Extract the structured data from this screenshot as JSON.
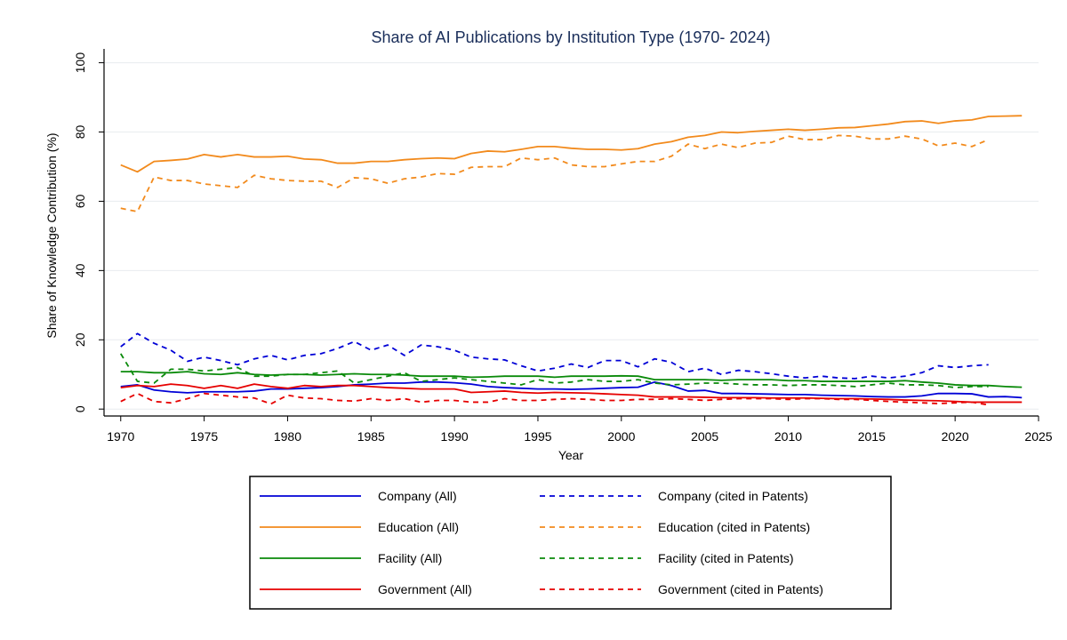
{
  "chart_data": {
    "type": "line",
    "title": "Share of AI Publications by Institution Type (1970- 2024)",
    "xlabel": "Year",
    "ylabel": "Share of Knowledge Contribution (%)",
    "xlim": [
      1969,
      2025
    ],
    "ylim": [
      -2,
      104
    ],
    "xticks": [
      1970,
      1975,
      1980,
      1985,
      1990,
      1995,
      2000,
      2005,
      2010,
      2015,
      2020,
      2025
    ],
    "yticks": [
      0,
      20,
      40,
      60,
      80,
      100
    ],
    "grid": "horizontal",
    "legend_position": "bottom",
    "series": [
      {
        "name": "Company (All)",
        "color": "#0000d6",
        "dash": "solid",
        "x": [
          1970,
          1971,
          1972,
          1973,
          1974,
          1975,
          1976,
          1977,
          1978,
          1979,
          1980,
          1981,
          1982,
          1983,
          1984,
          1985,
          1986,
          1987,
          1988,
          1989,
          1990,
          1991,
          1992,
          1993,
          1994,
          1995,
          1996,
          1997,
          1998,
          1999,
          2000,
          2001,
          2002,
          2003,
          2004,
          2005,
          2006,
          2007,
          2008,
          2009,
          2010,
          2011,
          2012,
          2013,
          2014,
          2015,
          2016,
          2017,
          2018,
          2019,
          2020,
          2021,
          2022,
          2023,
          2024
        ],
        "values": [
          6.5,
          7.0,
          5.5,
          5.0,
          4.7,
          5.0,
          5.0,
          5.0,
          5.2,
          5.8,
          5.8,
          6.0,
          6.2,
          6.5,
          7.0,
          7.2,
          7.5,
          7.5,
          7.8,
          7.8,
          7.6,
          7.2,
          6.5,
          6.2,
          6.0,
          5.8,
          5.8,
          5.7,
          5.8,
          6.0,
          6.2,
          6.3,
          7.8,
          6.8,
          5.2,
          5.4,
          4.5,
          4.5,
          4.4,
          4.3,
          4.2,
          4.2,
          4.0,
          3.9,
          3.8,
          3.6,
          3.5,
          3.5,
          3.8,
          4.5,
          4.5,
          4.4,
          3.5,
          3.6,
          3.3
        ]
      },
      {
        "name": "Company (cited in Patents)",
        "color": "#0000d6",
        "dash": "dashed",
        "x": [
          1970,
          1971,
          1972,
          1973,
          1974,
          1975,
          1976,
          1977,
          1978,
          1979,
          1980,
          1981,
          1982,
          1983,
          1984,
          1985,
          1986,
          1987,
          1988,
          1989,
          1990,
          1991,
          1992,
          1993,
          1994,
          1995,
          1996,
          1997,
          1998,
          1999,
          2000,
          2001,
          2002,
          2003,
          2004,
          2005,
          2006,
          2007,
          2008,
          2009,
          2010,
          2011,
          2012,
          2013,
          2014,
          2015,
          2016,
          2017,
          2018,
          2019,
          2020,
          2021,
          2022
        ],
        "values": [
          18.0,
          21.8,
          19.0,
          17.0,
          13.8,
          15.0,
          14.0,
          12.8,
          14.5,
          15.5,
          14.2,
          15.5,
          16.0,
          17.5,
          19.5,
          17.0,
          18.5,
          15.5,
          18.5,
          18.0,
          17.0,
          15.0,
          14.5,
          14.2,
          12.5,
          11.0,
          11.8,
          13.0,
          12.0,
          14.0,
          14.0,
          12.2,
          14.5,
          13.5,
          10.8,
          11.8,
          10.0,
          11.2,
          10.8,
          10.2,
          9.5,
          9.0,
          9.5,
          9.0,
          8.8,
          9.5,
          9.0,
          9.5,
          10.5,
          12.5,
          12.0,
          12.5,
          12.8
        ]
      },
      {
        "name": "Education (All)",
        "color": "#f28a1c",
        "dash": "solid",
        "x": [
          1970,
          1971,
          1972,
          1973,
          1974,
          1975,
          1976,
          1977,
          1978,
          1979,
          1980,
          1981,
          1982,
          1983,
          1984,
          1985,
          1986,
          1987,
          1988,
          1989,
          1990,
          1991,
          1992,
          1993,
          1994,
          1995,
          1996,
          1997,
          1998,
          1999,
          2000,
          2001,
          2002,
          2003,
          2004,
          2005,
          2006,
          2007,
          2008,
          2009,
          2010,
          2011,
          2012,
          2013,
          2014,
          2015,
          2016,
          2017,
          2018,
          2019,
          2020,
          2021,
          2022,
          2023,
          2024
        ],
        "values": [
          70.5,
          68.5,
          71.5,
          71.8,
          72.2,
          73.5,
          72.8,
          73.5,
          72.8,
          72.8,
          73.0,
          72.2,
          72.0,
          71.0,
          71.0,
          71.5,
          71.5,
          72.0,
          72.3,
          72.5,
          72.3,
          73.8,
          74.5,
          74.3,
          75.0,
          75.8,
          75.8,
          75.3,
          75.0,
          75.0,
          74.8,
          75.2,
          76.5,
          77.2,
          78.5,
          79.0,
          80.0,
          79.8,
          80.2,
          80.5,
          80.8,
          80.5,
          80.8,
          81.2,
          81.3,
          81.8,
          82.3,
          83.0,
          83.2,
          82.5,
          83.2,
          83.5,
          84.5,
          84.6,
          84.7
        ]
      },
      {
        "name": "Education (cited in Patents)",
        "color": "#f28a1c",
        "dash": "dashed",
        "x": [
          1970,
          1971,
          1972,
          1973,
          1974,
          1975,
          1976,
          1977,
          1978,
          1979,
          1980,
          1981,
          1982,
          1983,
          1984,
          1985,
          1986,
          1987,
          1988,
          1989,
          1990,
          1991,
          1992,
          1993,
          1994,
          1995,
          1996,
          1997,
          1998,
          1999,
          2000,
          2001,
          2002,
          2003,
          2004,
          2005,
          2006,
          2007,
          2008,
          2009,
          2010,
          2011,
          2012,
          2013,
          2014,
          2015,
          2016,
          2017,
          2018,
          2019,
          2020,
          2021,
          2022
        ],
        "values": [
          58.0,
          57.0,
          67.0,
          66.0,
          66.0,
          65.0,
          64.5,
          64.0,
          67.5,
          66.5,
          66.0,
          65.8,
          65.8,
          64.0,
          66.8,
          66.5,
          65.2,
          66.5,
          67.0,
          68.0,
          67.8,
          69.8,
          70.0,
          70.0,
          72.5,
          72.0,
          72.5,
          70.5,
          70.0,
          70.0,
          70.8,
          71.5,
          71.5,
          73.0,
          76.5,
          75.2,
          76.5,
          75.5,
          76.8,
          77.0,
          78.8,
          77.8,
          77.8,
          79.0,
          78.8,
          78.0,
          78.0,
          78.8,
          78.0,
          76.0,
          76.8,
          75.8,
          77.8
        ]
      },
      {
        "name": "Facility (All)",
        "color": "#0a8a0a",
        "dash": "solid",
        "x": [
          1970,
          1971,
          1972,
          1973,
          1974,
          1975,
          1976,
          1977,
          1978,
          1979,
          1980,
          1981,
          1982,
          1983,
          1984,
          1985,
          1986,
          1987,
          1988,
          1989,
          1990,
          1991,
          1992,
          1993,
          1994,
          1995,
          1996,
          1997,
          1998,
          1999,
          2000,
          2001,
          2002,
          2003,
          2004,
          2005,
          2006,
          2007,
          2008,
          2009,
          2010,
          2011,
          2012,
          2013,
          2014,
          2015,
          2016,
          2017,
          2018,
          2019,
          2020,
          2021,
          2022,
          2023,
          2024
        ],
        "values": [
          10.8,
          10.8,
          10.5,
          10.5,
          10.8,
          10.2,
          10.0,
          10.5,
          10.0,
          9.8,
          10.0,
          10.0,
          9.8,
          10.0,
          10.2,
          10.0,
          10.0,
          9.8,
          9.5,
          9.5,
          9.5,
          9.2,
          9.3,
          9.5,
          9.5,
          9.5,
          9.2,
          9.5,
          9.5,
          9.5,
          9.6,
          9.5,
          8.5,
          8.5,
          8.5,
          8.5,
          8.3,
          8.5,
          8.5,
          8.5,
          8.2,
          8.2,
          8.0,
          8.0,
          8.0,
          8.0,
          8.0,
          8.2,
          7.8,
          7.5,
          7.0,
          6.8,
          6.8,
          6.5,
          6.3
        ]
      },
      {
        "name": "Facility (cited in Patents)",
        "color": "#0a8a0a",
        "dash": "dashed",
        "x": [
          1970,
          1971,
          1972,
          1973,
          1974,
          1975,
          1976,
          1977,
          1978,
          1979,
          1980,
          1981,
          1982,
          1983,
          1984,
          1985,
          1986,
          1987,
          1988,
          1989,
          1990,
          1991,
          1992,
          1993,
          1994,
          1995,
          1996,
          1997,
          1998,
          1999,
          2000,
          2001,
          2002,
          2003,
          2004,
          2005,
          2006,
          2007,
          2008,
          2009,
          2010,
          2011,
          2012,
          2013,
          2014,
          2015,
          2016,
          2017,
          2018,
          2019,
          2020,
          2021,
          2022
        ],
        "values": [
          16.0,
          8.0,
          7.5,
          11.5,
          11.5,
          11.0,
          11.5,
          12.0,
          9.5,
          9.5,
          10.0,
          10.0,
          10.5,
          11.0,
          7.5,
          8.5,
          9.5,
          10.5,
          8.0,
          8.5,
          9.0,
          8.5,
          8.0,
          7.5,
          7.0,
          8.5,
          7.5,
          7.8,
          8.5,
          8.0,
          8.0,
          8.5,
          7.5,
          7.0,
          7.2,
          7.5,
          7.5,
          7.2,
          7.0,
          7.0,
          6.8,
          7.0,
          7.0,
          6.8,
          6.5,
          7.0,
          7.5,
          7.0,
          7.0,
          6.8,
          6.2,
          6.5,
          6.5
        ]
      },
      {
        "name": "Government (All)",
        "color": "#e60000",
        "dash": "solid",
        "x": [
          1970,
          1971,
          1972,
          1973,
          1974,
          1975,
          1976,
          1977,
          1978,
          1979,
          1980,
          1981,
          1982,
          1983,
          1984,
          1985,
          1986,
          1987,
          1988,
          1989,
          1990,
          1991,
          1992,
          1993,
          1994,
          1995,
          1996,
          1997,
          1998,
          1999,
          2000,
          2001,
          2002,
          2003,
          2004,
          2005,
          2006,
          2007,
          2008,
          2009,
          2010,
          2011,
          2012,
          2013,
          2014,
          2015,
          2016,
          2017,
          2018,
          2019,
          2020,
          2021,
          2022,
          2023,
          2024
        ],
        "values": [
          6.2,
          6.8,
          6.5,
          7.2,
          6.8,
          6.0,
          6.8,
          6.0,
          7.2,
          6.5,
          6.0,
          6.8,
          6.5,
          6.8,
          6.8,
          6.5,
          6.2,
          6.0,
          5.8,
          5.8,
          5.8,
          4.8,
          5.0,
          5.2,
          4.8,
          4.6,
          4.8,
          4.7,
          4.6,
          4.4,
          4.2,
          4.0,
          3.5,
          3.5,
          3.5,
          3.4,
          3.3,
          3.3,
          3.3,
          3.2,
          3.2,
          3.2,
          3.1,
          3.0,
          3.0,
          2.9,
          2.8,
          2.6,
          2.5,
          2.4,
          2.2,
          2.0,
          2.0,
          2.0,
          2.0
        ]
      },
      {
        "name": "Government (cited in Patents)",
        "color": "#e60000",
        "dash": "dashed",
        "x": [
          1970,
          1971,
          1972,
          1973,
          1974,
          1975,
          1976,
          1977,
          1978,
          1979,
          1980,
          1981,
          1982,
          1983,
          1984,
          1985,
          1986,
          1987,
          1988,
          1989,
          1990,
          1991,
          1992,
          1993,
          1994,
          1995,
          1996,
          1997,
          1998,
          1999,
          2000,
          2001,
          2002,
          2003,
          2004,
          2005,
          2006,
          2007,
          2008,
          2009,
          2010,
          2011,
          2012,
          2013,
          2014,
          2015,
          2016,
          2017,
          2018,
          2019,
          2020,
          2021,
          2022
        ],
        "values": [
          2.2,
          4.5,
          2.2,
          1.8,
          3.0,
          4.5,
          4.0,
          3.5,
          3.2,
          1.5,
          4.0,
          3.2,
          3.0,
          2.5,
          2.3,
          3.0,
          2.5,
          3.0,
          2.0,
          2.5,
          2.5,
          2.0,
          2.0,
          3.0,
          2.5,
          2.5,
          2.8,
          3.0,
          2.8,
          2.5,
          2.5,
          2.8,
          2.8,
          3.0,
          2.8,
          2.5,
          2.8,
          3.0,
          3.0,
          3.0,
          2.8,
          3.0,
          3.0,
          2.8,
          2.8,
          2.5,
          2.2,
          2.0,
          1.8,
          1.6,
          1.8,
          2.0,
          1.2
        ]
      }
    ]
  }
}
